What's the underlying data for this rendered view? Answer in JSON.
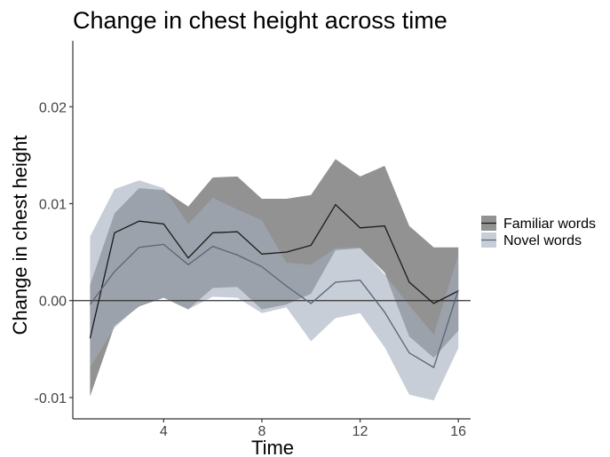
{
  "chart_data": {
    "type": "area",
    "title": "Change in chest height across time",
    "xlabel": "Time",
    "ylabel": "Change in chest height",
    "xlim": [
      0.3,
      16.5
    ],
    "ylim": [
      -0.0122,
      0.0268
    ],
    "xticks": [
      4,
      8,
      12,
      16
    ],
    "xtick_labels": [
      "4",
      "8",
      "12",
      "16"
    ],
    "yticks": [
      -0.01,
      0,
      0.01,
      0.02
    ],
    "ytick_labels": [
      "-0.01",
      "0.00",
      "0.01",
      "0.02"
    ],
    "grid": false,
    "reference_line_y": 0,
    "legend_position": "right",
    "x": [
      1,
      2,
      3,
      4,
      5,
      6,
      7,
      8,
      9,
      10,
      11,
      12,
      13,
      14,
      15,
      16
    ],
    "series": [
      {
        "name": "Familiar words",
        "color": "#7f7f7f",
        "line_color": "#1a1a1a",
        "mean": [
          -0.0039,
          0.007,
          0.0082,
          0.0079,
          0.0044,
          0.007,
          0.0071,
          0.0048,
          0.005,
          0.0057,
          0.0099,
          0.0075,
          0.0077,
          0.0019,
          -0.0003,
          0.001
        ],
        "lower": [
          -0.0099,
          -0.0026,
          -0.0006,
          0.0003,
          -0.0009,
          0.0013,
          0.0014,
          -0.0009,
          -0.0004,
          0.0007,
          0.0052,
          0.0054,
          0.0029,
          -0.0037,
          -0.0059,
          -0.0031
        ],
        "upper": [
          0.0016,
          0.009,
          0.0116,
          0.0114,
          0.0097,
          0.0127,
          0.0128,
          0.0105,
          0.0105,
          0.0109,
          0.0146,
          0.0128,
          0.0139,
          0.0077,
          0.0055,
          0.0055
        ]
      },
      {
        "name": "Novel words",
        "color": "#a3adbd",
        "line_color": "#5a6478",
        "mean": [
          -0.0004,
          0.003,
          0.0055,
          0.0058,
          0.0037,
          0.0056,
          0.0047,
          0.0035,
          0.0015,
          -0.0003,
          0.0019,
          0.0021,
          -0.0012,
          -0.0054,
          -0.0069,
          0.0011
        ],
        "lower": [
          -0.0069,
          -0.0028,
          -0.0005,
          0.0003,
          -0.0009,
          0.0004,
          0.0003,
          -0.0013,
          -0.0007,
          -0.0042,
          -0.0018,
          -0.0013,
          -0.0048,
          -0.0097,
          -0.0103,
          -0.0049
        ],
        "upper": [
          0.0066,
          0.0115,
          0.0124,
          0.0116,
          0.0079,
          0.0106,
          0.0094,
          0.0083,
          0.0039,
          0.0037,
          0.0054,
          0.0055,
          0.0027,
          -0.0005,
          -0.0035,
          0.0047
        ]
      }
    ]
  }
}
